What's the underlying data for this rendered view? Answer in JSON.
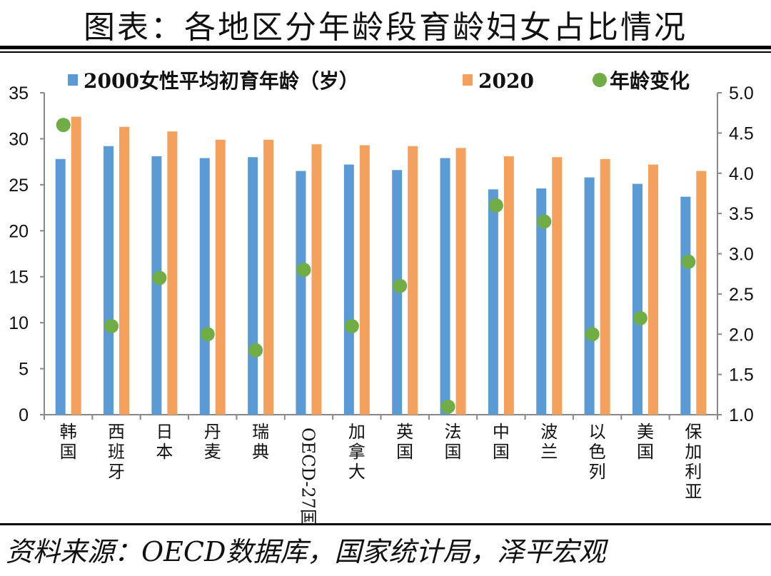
{
  "title": "图表：各地区分年龄段育龄妇女占比情况",
  "source": "资料来源：OECD数据库，国家统计局，泽平宏观",
  "chart_data": {
    "type": "bar",
    "categories": [
      "韩国",
      "西班牙",
      "日本",
      "丹麦",
      "瑞典",
      "OECD-27国",
      "加拿大",
      "英国",
      "法国",
      "中国",
      "波兰",
      "以色列",
      "美国",
      "保加利亚"
    ],
    "series": [
      {
        "name": "2000女性平均初育年龄（岁）",
        "type": "bar",
        "axis": "left",
        "color": "#5b9bd5",
        "values": [
          27.8,
          29.2,
          28.1,
          27.9,
          28.0,
          26.5,
          27.2,
          26.6,
          27.9,
          24.5,
          24.6,
          25.8,
          25.1,
          23.7
        ]
      },
      {
        "name": "2020",
        "type": "bar",
        "axis": "left",
        "color": "#f4a15d",
        "values": [
          32.4,
          31.3,
          30.8,
          29.9,
          29.9,
          29.4,
          29.3,
          29.2,
          29.0,
          28.1,
          28.0,
          27.8,
          27.2,
          26.5
        ]
      },
      {
        "name": "年龄变化",
        "type": "scatter",
        "axis": "right",
        "color": "#70ad47",
        "values": [
          4.6,
          2.1,
          2.7,
          2.0,
          1.8,
          2.8,
          2.1,
          2.6,
          1.1,
          3.6,
          3.4,
          2.0,
          2.2,
          2.9
        ]
      }
    ],
    "ylim": [
      0,
      35
    ],
    "yticks": [
      "0",
      "5",
      "10",
      "15",
      "20",
      "25",
      "30",
      "35"
    ],
    "y2lim": [
      1.0,
      5.0
    ],
    "y2ticks": [
      "1.0",
      "1.5",
      "2.0",
      "2.5",
      "3.0",
      "3.5",
      "4.0",
      "4.5",
      "5.0"
    ],
    "legend": "top",
    "grid": false
  }
}
